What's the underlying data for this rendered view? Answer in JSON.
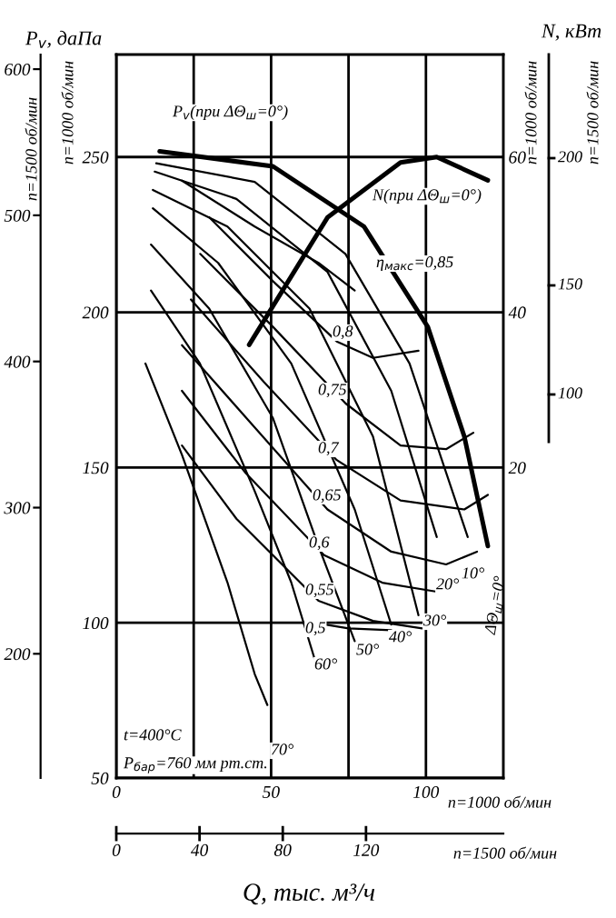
{
  "chart_data": {
    "type": "line",
    "xlabel": "n=1000 об/мин",
    "ylabel": "P$_{v}$, даПа",
    "y2label": "N, кВт",
    "x2label": "n=1500 об/мин",
    "xlim": [
      0,
      125
    ],
    "xticks": [
      0,
      {
        "value": 25,
        "label": null
      },
      50,
      {
        "value": 75,
        "label": null
      },
      100
    ],
    "ylim": [
      50,
      283
    ],
    "yticks": [
      50,
      100,
      150,
      200,
      250
    ],
    "y2lim": [
      -20,
      73.2
    ],
    "y2ticks": [
      20,
      40,
      60
    ],
    "y3lim": [
      115,
      610
    ],
    "y3ticks": [
      200,
      300,
      400,
      500,
      600
    ],
    "x2lim": [
      0,
      186
    ],
    "x2ticks": [
      0,
      40,
      80,
      120
    ],
    "grid": true,
    "line_style": "solid",
    "marker": "none",
    "series": [
      {
        "color": "#000000",
        "x": [
          14,
          50.6,
          80,
          100.6,
          112.4,
          120
        ],
        "values": [
          251.8,
          247,
          227.6,
          195.3,
          160,
          124.7
        ]
      },
      {
        "color": "#000000",
        "x": [
          12.9,
          44.7,
          74,
          94.7,
          113.5
        ],
        "values": [
          248,
          242,
          218.8,
          183.5,
          127.6
        ]
      },
      {
        "color": "#000000",
        "x": [
          12.4,
          38.8,
          68.2,
          88.8,
          103.5
        ],
        "values": [
          245.3,
          236.5,
          213,
          174.7,
          127.6
        ]
      },
      {
        "color": "#000000",
        "x": [
          11.8,
          35.9,
          62.4,
          82.9,
          97.6
        ],
        "values": [
          239.4,
          227.6,
          201.2,
          160,
          102.4
        ]
      },
      {
        "color": "#000000",
        "x": [
          11.8,
          32.9,
          56.5,
          77,
          88.8
        ],
        "values": [
          233.5,
          215.9,
          183.5,
          136.5,
          99.4
        ]
      },
      {
        "color": "#000000",
        "x": [
          11.2,
          30,
          50.6,
          65.3,
          77
        ],
        "values": [
          221.8,
          201.2,
          165.9,
          124.7,
          94.1
        ]
      },
      {
        "color": "#000000",
        "x": [
          11.2,
          27,
          44.7,
          56.5,
          64.1
        ],
        "values": [
          207,
          183.5,
          142.4,
          113,
          88.2
        ]
      },
      {
        "color": "#000000",
        "x": [
          9.4,
          21.2,
          35.9,
          44.7,
          48.8
        ],
        "values": [
          183.5,
          154.1,
          113,
          83.5,
          73.5
        ]
      },
      {
        "color": "#000000",
        "x": [
          21.2,
          44.7,
          65.3,
          77
        ],
        "values": [
          242.4,
          227.6,
          215.9,
          207
        ]
      },
      {
        "color": "#000000",
        "x": [
          30,
          50.6,
          71.2,
          82.9,
          97.6
        ],
        "values": [
          230.6,
          210,
          190.6,
          185.3,
          187.6
        ]
      },
      {
        "color": "#000000",
        "x": [
          27.1,
          50.6,
          74.1,
          91.8,
          106.5,
          115.3
        ],
        "values": [
          218.8,
          195.3,
          170.6,
          157.1,
          155.9,
          161.2
        ]
      },
      {
        "color": "#000000",
        "x": [
          24.1,
          47.6,
          71.2,
          91.8,
          112.4,
          120
        ],
        "values": [
          204.1,
          177.6,
          152.4,
          139.4,
          136.5,
          141.2
        ]
      },
      {
        "color": "#000000",
        "x": [
          21.2,
          44.7,
          68.2,
          88.8,
          106.5,
          116.5
        ],
        "values": [
          189.4,
          162.9,
          136.5,
          122.9,
          118.8,
          122.9
        ]
      },
      {
        "color": "#000000",
        "x": [
          21.2,
          41.8,
          67.1,
          85.9,
          103.5
        ],
        "values": [
          174.7,
          148.2,
          121.8,
          112.9,
          110
        ]
      },
      {
        "color": "#000000",
        "x": [
          21.2,
          38.8,
          65.3,
          82.9,
          98.8
        ],
        "values": [
          157.1,
          133.5,
          107.1,
          100.6,
          98.2
        ]
      },
      {
        "color": "#000000",
        "x": [
          64,
          75,
          88.8
        ],
        "values": [
          100,
          98.2,
          97.6
        ]
      },
      {
        "color": "#000000",
        "axis": "y2",
        "x": [
          42.9,
          68.2,
          91.8,
          103.5,
          120
        ],
        "values": [
          35.8,
          52.2,
          59.3,
          60,
          57
        ]
      }
    ],
    "annotations": [
      "n=1500 об/мин",
      "n=1000 об/мин",
      "n=1000 об/мин",
      "n=1500 об/мин",
      "200",
      "150",
      "100",
      "t=400°C",
      "P$_{бар}$=760 мм рт.ст.",
      "P$_{v}$(при ΔΘ$_{ш}$=0°)",
      "N(при ΔΘ$_{ш}$=0°)",
      "η$_{макс}$=0,85",
      "0,8",
      "0,75",
      "0,7",
      "0,65",
      "0,6",
      "0,55",
      "0,5",
      "70°",
      "60°",
      "50°",
      "40°",
      "30°",
      "20°",
      "10°",
      "ΔΘ$_{ш}$=0°",
      "Q, тыс. м³/ч"
    ]
  }
}
